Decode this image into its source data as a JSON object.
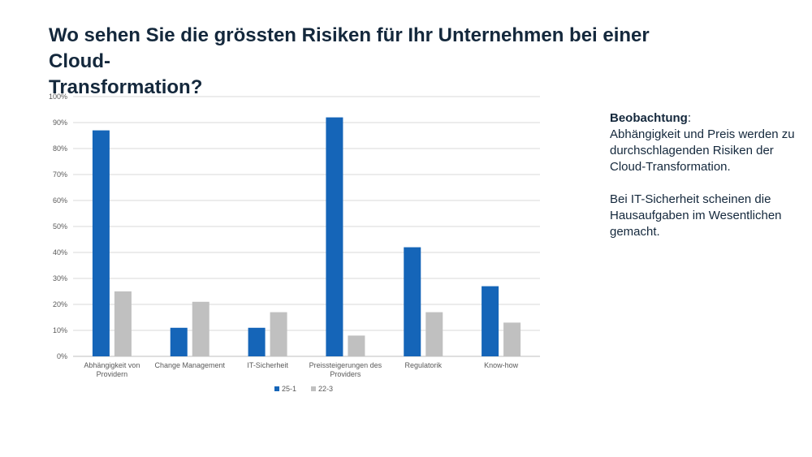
{
  "slide": {
    "title_lines": [
      "Wo sehen Sie die grössten Risiken für Ihr Unternehmen bei einer Cloud-",
      "Transformation?"
    ]
  },
  "observation": {
    "heading": "Beobachtung",
    "heading_suffix": ":",
    "paragraph1": "Abhängigkeit und Preis werden zu durchschlagenden Risiken der Cloud-Transformation.",
    "paragraph2": "Bei IT-Sicherheit scheinen die Hausaufgaben im Wesentlichen gemacht."
  },
  "chart_data": {
    "type": "bar",
    "categories": [
      [
        "Abhängigkeit von",
        "Providern"
      ],
      [
        "Change Management"
      ],
      [
        "IT-Sicherheit"
      ],
      [
        "Preissteigerungen des",
        "Providers"
      ],
      [
        "Regulatorik"
      ],
      [
        "Know-how"
      ]
    ],
    "series": [
      {
        "name": "25-1",
        "color": "#1565b8",
        "values": [
          87,
          11,
          11,
          92,
          42,
          27
        ]
      },
      {
        "name": "22-3",
        "color": "#c0c0c0",
        "values": [
          25,
          21,
          17,
          8,
          17,
          13
        ]
      }
    ],
    "ylim": [
      0,
      100
    ],
    "yticks": [
      "0%",
      "10%",
      "20%",
      "30%",
      "40%",
      "50%",
      "60%",
      "70%",
      "80%",
      "90%",
      "100%"
    ],
    "grid": true,
    "legend_position": "bottom"
  }
}
